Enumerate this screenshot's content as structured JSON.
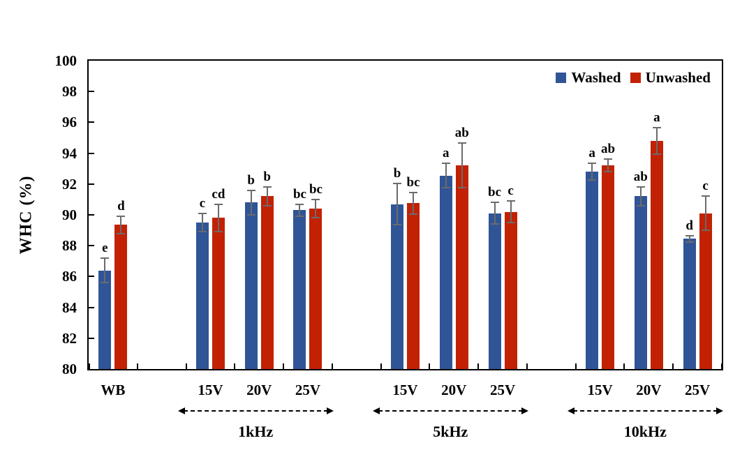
{
  "figure": {
    "background": "#FFFFFF"
  },
  "chart_data": {
    "type": "bar",
    "title": "",
    "xlabel": "",
    "ylabel": "WHC (%)",
    "ylim": [
      80,
      100
    ],
    "y_ticks": [
      100,
      98,
      96,
      94,
      92,
      90,
      88,
      86,
      84,
      82,
      80
    ],
    "grid": "off",
    "legend_position": "top-right-inside",
    "categories": [
      "WB",
      "15V",
      "20V",
      "25V",
      "15V",
      "20V",
      "25V",
      "15V",
      "20V",
      "25V"
    ],
    "category_slots": [
      0,
      2,
      3,
      4,
      6,
      7,
      8,
      10,
      11,
      12
    ],
    "total_slots": 13,
    "groups": [
      {
        "label": "1kHz",
        "start_slot": 2,
        "end_slot": 4
      },
      {
        "label": "5kHz",
        "start_slot": 6,
        "end_slot": 8
      },
      {
        "label": "10kHz",
        "start_slot": 10,
        "end_slot": 12
      }
    ],
    "series": [
      {
        "name": "Washed",
        "color": "#2F5597",
        "values": [
          86.4,
          89.5,
          90.8,
          90.3,
          90.7,
          92.55,
          90.1,
          92.8,
          91.2,
          88.45
        ],
        "errors": [
          0.8,
          0.6,
          0.8,
          0.4,
          1.35,
          0.8,
          0.7,
          0.55,
          0.6,
          0.2
        ],
        "letters": [
          "e",
          "c",
          "b",
          "bc",
          "b",
          "a",
          "bc",
          "a",
          "ab",
          "d"
        ]
      },
      {
        "name": "Unwashed",
        "color": "#C22104",
        "values": [
          89.35,
          89.8,
          91.2,
          90.4,
          90.75,
          93.2,
          90.2,
          93.2,
          94.8,
          90.1
        ],
        "errors": [
          0.55,
          0.9,
          0.6,
          0.6,
          0.7,
          1.45,
          0.7,
          0.4,
          0.85,
          1.1
        ],
        "letters": [
          "d",
          "cd",
          "b",
          "bc",
          "bc",
          "ab",
          "c",
          "ab",
          "a",
          "c"
        ]
      }
    ],
    "error_bar_color": "#6B6B6B"
  }
}
